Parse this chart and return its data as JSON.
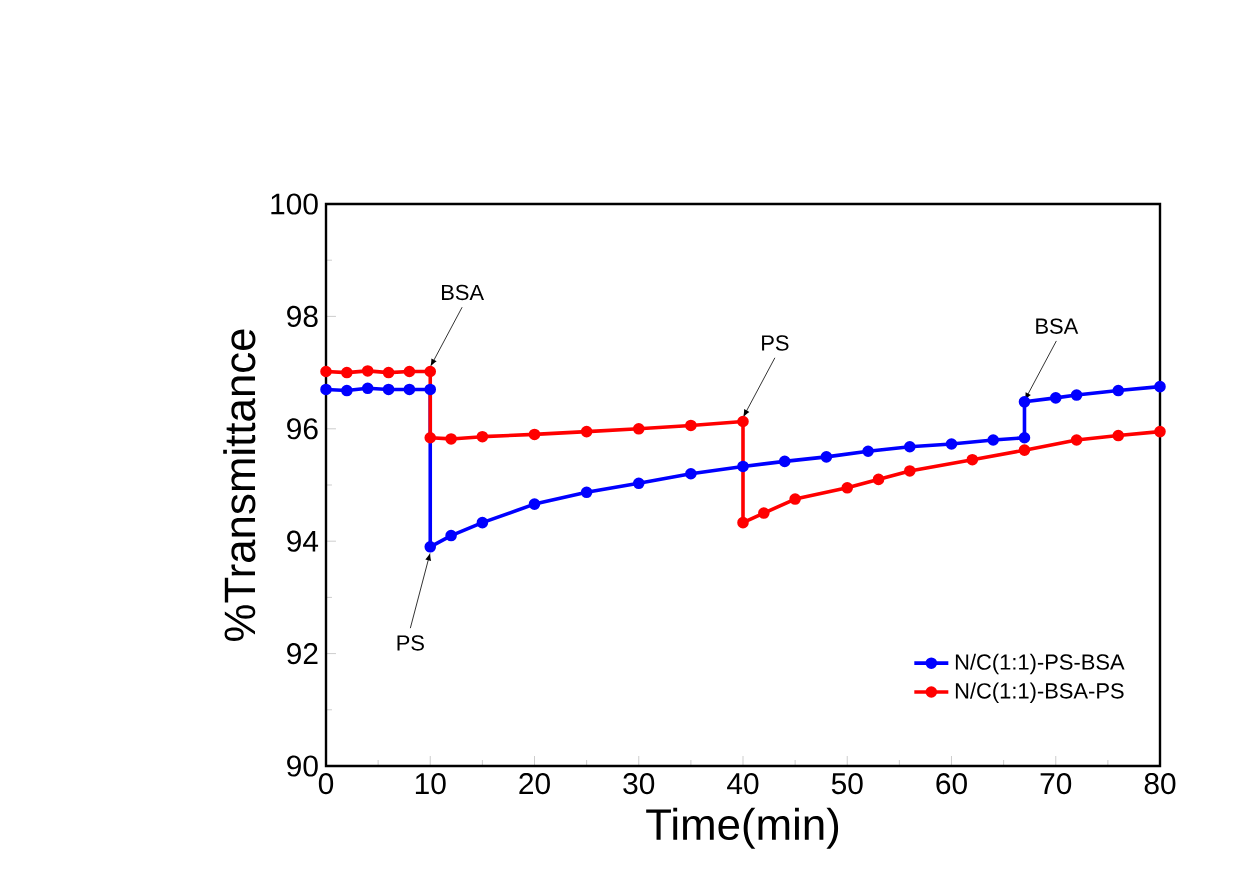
{
  "chart_data": {
    "type": "line",
    "xlabel": "Time(min)",
    "ylabel": "%Transmittance",
    "xlim": [
      0,
      80
    ],
    "xticks": [
      0,
      10,
      20,
      30,
      40,
      50,
      60,
      70,
      80
    ],
    "ylim": [
      90,
      100
    ],
    "yticks": [
      90,
      92,
      94,
      96,
      98,
      100
    ],
    "legend": "bottom right",
    "marker": "circle",
    "grid": false,
    "series": [
      {
        "name": "N/C(1:1)-PS-BSA",
        "color": "#0000ff",
        "x": [
          0,
          2,
          4,
          6,
          8,
          10,
          10,
          12,
          15,
          20,
          25,
          30,
          35,
          40,
          44,
          48,
          52,
          56,
          60,
          64,
          67,
          67,
          70,
          72,
          76,
          80
        ],
        "values": [
          96.7,
          96.68,
          96.72,
          96.7,
          96.7,
          96.7,
          93.9,
          94.1,
          94.33,
          94.66,
          94.87,
          95.03,
          95.2,
          95.33,
          95.42,
          95.5,
          95.6,
          95.68,
          95.73,
          95.8,
          95.84,
          96.48,
          96.55,
          96.6,
          96.68,
          96.75
        ]
      },
      {
        "name": "N/C(1:1)-BSA-PS",
        "color": "#ff0000",
        "x": [
          0,
          2,
          4,
          6,
          8,
          10,
          10,
          12,
          15,
          20,
          25,
          30,
          35,
          40,
          40,
          42,
          45,
          50,
          53,
          56,
          62,
          67,
          72,
          76,
          80
        ],
        "values": [
          97.02,
          97.0,
          97.03,
          97.0,
          97.02,
          97.02,
          95.84,
          95.82,
          95.86,
          95.9,
          95.95,
          96.0,
          96.06,
          96.13,
          94.33,
          94.5,
          94.75,
          94.95,
          95.1,
          95.25,
          95.45,
          95.62,
          95.8,
          95.88,
          95.95
        ]
      }
    ],
    "annotations": [
      {
        "text": "BSA",
        "x": 10,
        "y": 97.1
      },
      {
        "text": "PS",
        "x": 10,
        "y": 93.8
      },
      {
        "text": "PS",
        "x": 40,
        "y": 96.2
      },
      {
        "text": "BSA",
        "x": 67,
        "y": 96.5
      }
    ]
  }
}
